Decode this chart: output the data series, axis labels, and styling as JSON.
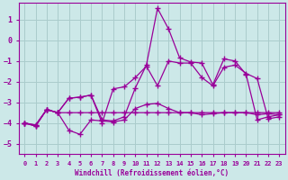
{
  "xlabel": "Windchill (Refroidissement éolien,°C)",
  "xlim": [
    -0.5,
    23.5
  ],
  "ylim": [
    -5.5,
    1.8
  ],
  "xticks": [
    0,
    1,
    2,
    3,
    4,
    5,
    6,
    7,
    8,
    9,
    10,
    11,
    12,
    13,
    14,
    15,
    16,
    17,
    18,
    19,
    20,
    21,
    22,
    23
  ],
  "yticks": [
    -5,
    -4,
    -3,
    -2,
    -1,
    0,
    1
  ],
  "bg_color": "#cce8e8",
  "grid_color": "#aacccc",
  "line_color": "#990099",
  "line1_x": [
    0,
    1,
    2,
    3,
    4,
    5,
    6,
    7,
    8,
    9,
    10,
    11,
    12,
    13,
    14,
    15,
    16,
    17,
    18,
    19,
    20,
    21,
    22,
    23
  ],
  "line1_y": [
    -4.0,
    -4.15,
    -3.35,
    -3.5,
    -3.5,
    -3.5,
    -3.5,
    -3.5,
    -3.5,
    -3.5,
    -3.5,
    -3.5,
    -3.5,
    -3.5,
    -3.5,
    -3.5,
    -3.5,
    -3.5,
    -3.5,
    -3.5,
    -3.5,
    -3.5,
    -3.5,
    -3.5
  ],
  "line2_x": [
    0,
    1,
    2,
    3,
    4,
    5,
    6,
    7,
    8,
    9,
    10,
    11,
    12,
    13,
    14,
    15,
    16,
    17,
    18,
    19,
    20,
    21,
    22,
    23
  ],
  "line2_y": [
    -4.0,
    -4.15,
    -3.35,
    -3.5,
    -4.35,
    -4.55,
    -3.85,
    -3.9,
    -3.95,
    -3.85,
    -3.3,
    -3.1,
    -3.05,
    -3.3,
    -3.5,
    -3.5,
    -3.6,
    -3.55,
    -3.5,
    -3.5,
    -3.5,
    -3.6,
    -3.55,
    -3.6
  ],
  "line3_x": [
    0,
    1,
    2,
    3,
    4,
    5,
    6,
    7,
    8,
    9,
    10,
    11,
    12,
    13,
    14,
    15,
    16,
    17,
    18,
    19,
    20,
    21,
    22,
    23
  ],
  "line3_y": [
    -4.0,
    -4.1,
    -3.35,
    -3.5,
    -2.8,
    -2.75,
    -2.65,
    -4.0,
    -2.35,
    -2.25,
    -1.8,
    -1.25,
    -2.2,
    -1.0,
    -1.1,
    -1.1,
    -1.8,
    -2.2,
    -1.3,
    -1.2,
    -1.6,
    -1.85,
    -3.8,
    -3.7
  ],
  "line4_x": [
    0,
    1,
    2,
    3,
    4,
    5,
    6,
    7,
    8,
    9,
    10,
    11,
    12,
    13,
    14,
    15,
    16,
    17,
    18,
    19,
    20,
    21,
    22,
    23
  ],
  "line4_y": [
    -4.0,
    -4.1,
    -3.35,
    -3.5,
    -2.8,
    -2.75,
    -2.65,
    -3.85,
    -3.9,
    -3.7,
    -2.3,
    -1.2,
    1.55,
    0.55,
    -0.85,
    -1.05,
    -1.1,
    -2.15,
    -0.9,
    -1.0,
    -1.65,
    -3.85,
    -3.7,
    -3.6
  ]
}
